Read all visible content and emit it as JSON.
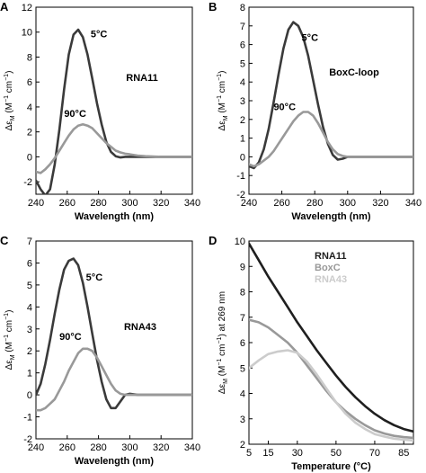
{
  "colors": {
    "dark": "#3a3a3a",
    "mid": "#999999",
    "light": "#cccccc",
    "black": "#1f1f1f"
  },
  "chart_data": [
    {
      "panel_letter": "A",
      "type": "line",
      "annotation": "RNA11",
      "xlabel": "Wavelength (nm)",
      "ylabel_parts": [
        "Δε",
        "M",
        " (M",
        "−1",
        " cm",
        "−1",
        ")"
      ],
      "xlim": [
        240,
        340
      ],
      "ylim": [
        -3,
        12
      ],
      "xticks": [
        240,
        260,
        280,
        300,
        320,
        340
      ],
      "yticks": [
        -2,
        0,
        2,
        4,
        6,
        8,
        10,
        12
      ],
      "series": [
        {
          "name": "5°C",
          "color": "dark",
          "x": [
            240,
            243,
            246,
            249,
            252,
            255,
            258,
            261,
            264,
            267,
            270,
            273,
            276,
            279,
            282,
            285,
            288,
            291,
            294,
            297,
            300,
            305,
            310,
            320,
            330,
            340
          ],
          "y": [
            -1.9,
            -2.6,
            -3.1,
            -2.6,
            -0.6,
            2.2,
            5.4,
            8.2,
            9.8,
            10.2,
            9.6,
            8.2,
            6.3,
            4.3,
            2.6,
            1.2,
            0.4,
            0.05,
            -0.05,
            0.0,
            0.0,
            0.0,
            0.0,
            0.0,
            0.0,
            0.0
          ]
        },
        {
          "name": "90°C",
          "color": "mid",
          "x": [
            240,
            243,
            246,
            249,
            252,
            255,
            258,
            261,
            264,
            267,
            270,
            273,
            276,
            279,
            282,
            285,
            288,
            291,
            294,
            297,
            300,
            305,
            310,
            320,
            330,
            340
          ],
          "y": [
            -1.2,
            -1.3,
            -1.0,
            -0.6,
            -0.1,
            0.5,
            1.1,
            1.7,
            2.2,
            2.5,
            2.6,
            2.5,
            2.3,
            1.9,
            1.5,
            1.1,
            0.8,
            0.5,
            0.35,
            0.25,
            0.2,
            0.1,
            0.05,
            0.0,
            0.0,
            0.0
          ]
        }
      ],
      "labels": [
        {
          "text": "5°C",
          "x": 275,
          "y": 9.6
        },
        {
          "text": "90°C",
          "x": 258,
          "y": 3.2
        }
      ]
    },
    {
      "panel_letter": "B",
      "type": "line",
      "annotation": "BoxC-loop",
      "xlabel": "Wavelength (nm)",
      "ylabel_parts": [
        "Δε",
        "M",
        " (M",
        "−1",
        " cm",
        "−1",
        ")"
      ],
      "xlim": [
        240,
        340
      ],
      "ylim": [
        -2,
        8
      ],
      "xticks": [
        240,
        260,
        280,
        300,
        320,
        340
      ],
      "yticks": [
        -2,
        -1,
        0,
        1,
        2,
        3,
        4,
        5,
        6,
        7,
        8
      ],
      "series": [
        {
          "name": "5°C",
          "color": "dark",
          "x": [
            240,
            243,
            246,
            249,
            252,
            255,
            258,
            261,
            264,
            267,
            270,
            273,
            276,
            279,
            282,
            285,
            288,
            291,
            294,
            297,
            300,
            305,
            310,
            320,
            330,
            340
          ],
          "y": [
            -0.5,
            -0.6,
            -0.3,
            0.4,
            1.5,
            2.9,
            4.4,
            5.8,
            6.8,
            7.2,
            7.0,
            6.4,
            5.4,
            4.1,
            2.8,
            1.6,
            0.7,
            0.1,
            -0.15,
            -0.1,
            0.0,
            0.0,
            0.0,
            0.0,
            0.0,
            0.0
          ]
        },
        {
          "name": "90°C",
          "color": "mid",
          "x": [
            240,
            243,
            246,
            249,
            252,
            255,
            258,
            261,
            264,
            267,
            270,
            273,
            276,
            279,
            282,
            285,
            288,
            291,
            294,
            297,
            300,
            305,
            310,
            320,
            330,
            340
          ],
          "y": [
            -0.4,
            -0.5,
            -0.4,
            -0.2,
            0.0,
            0.3,
            0.7,
            1.1,
            1.5,
            1.9,
            2.2,
            2.4,
            2.4,
            2.2,
            1.8,
            1.3,
            0.8,
            0.4,
            0.15,
            0.05,
            0.0,
            0.0,
            0.0,
            0.0,
            0.0,
            0.0
          ]
        }
      ],
      "labels": [
        {
          "text": "5°C",
          "x": 272,
          "y": 6.2
        },
        {
          "text": "90°C",
          "x": 255,
          "y": 2.5
        }
      ]
    },
    {
      "panel_letter": "C",
      "type": "line",
      "annotation": "RNA43",
      "xlabel": "Wavelength (nm)",
      "ylabel_parts": [
        "Δε",
        "M",
        " (M",
        "−1",
        " cm",
        "−1",
        ")"
      ],
      "xlim": [
        240,
        340
      ],
      "ylim": [
        -2,
        7
      ],
      "xticks": [
        240,
        260,
        280,
        300,
        320,
        340
      ],
      "yticks": [
        -2,
        -1,
        0,
        1,
        2,
        3,
        4,
        5,
        6,
        7
      ],
      "series": [
        {
          "name": "5°C",
          "color": "dark",
          "x": [
            240,
            243,
            246,
            249,
            252,
            255,
            258,
            261,
            264,
            267,
            270,
            273,
            276,
            279,
            282,
            285,
            288,
            291,
            294,
            297,
            300,
            305,
            310,
            320,
            330,
            340
          ],
          "y": [
            0.0,
            0.5,
            1.4,
            2.5,
            3.7,
            4.8,
            5.7,
            6.1,
            6.2,
            5.9,
            5.1,
            4.0,
            2.8,
            1.6,
            0.6,
            -0.2,
            -0.6,
            -0.6,
            -0.3,
            0.0,
            0.05,
            0.0,
            0.0,
            0.0,
            0.0,
            0.0
          ]
        },
        {
          "name": "90°C",
          "color": "mid",
          "x": [
            240,
            243,
            246,
            249,
            252,
            255,
            258,
            261,
            264,
            267,
            270,
            273,
            276,
            279,
            282,
            285,
            288,
            291,
            294,
            297,
            300,
            305,
            310,
            320,
            330,
            340
          ],
          "y": [
            -0.7,
            -0.7,
            -0.6,
            -0.4,
            -0.2,
            0.2,
            0.6,
            1.1,
            1.5,
            1.9,
            2.1,
            2.1,
            2.0,
            1.7,
            1.3,
            0.9,
            0.5,
            0.2,
            0.05,
            0.0,
            0.0,
            0.0,
            0.0,
            0.0,
            0.0,
            0.0
          ]
        }
      ],
      "labels": [
        {
          "text": "5°C",
          "x": 272,
          "y": 5.2
        },
        {
          "text": "90°C",
          "x": 255,
          "y": 2.5
        }
      ]
    },
    {
      "panel_letter": "D",
      "type": "line",
      "annotation": "",
      "xlabel": "Temperature (°C)",
      "ylabel_parts": [
        "Δε",
        "M",
        " (M",
        "−1",
        " cm",
        "−1",
        ") at 269 nm"
      ],
      "xlim": [
        5,
        90
      ],
      "ylim": [
        2,
        10
      ],
      "xticks": [
        5,
        15,
        30,
        50,
        70,
        85
      ],
      "yticks": [
        2,
        3,
        4,
        5,
        6,
        7,
        8,
        9,
        10
      ],
      "legend_placement": "top-center",
      "series": [
        {
          "name": "RNA11",
          "color": "black",
          "x": [
            5,
            10,
            15,
            20,
            25,
            30,
            35,
            40,
            45,
            50,
            55,
            60,
            65,
            70,
            75,
            80,
            85,
            90
          ],
          "y": [
            9.9,
            9.25,
            8.6,
            8.0,
            7.4,
            6.8,
            6.25,
            5.7,
            5.2,
            4.7,
            4.25,
            3.85,
            3.5,
            3.2,
            2.95,
            2.75,
            2.6,
            2.5
          ]
        },
        {
          "name": "BoxC",
          "color": "mid",
          "x": [
            5,
            10,
            15,
            20,
            25,
            30,
            35,
            40,
            45,
            50,
            55,
            60,
            65,
            70,
            75,
            80,
            85,
            90
          ],
          "y": [
            6.9,
            6.8,
            6.6,
            6.3,
            6.0,
            5.6,
            5.1,
            4.6,
            4.1,
            3.65,
            3.3,
            3.0,
            2.75,
            2.55,
            2.42,
            2.33,
            2.28,
            2.25
          ]
        },
        {
          "name": "RNA43",
          "color": "light",
          "x": [
            5,
            10,
            15,
            20,
            25,
            30,
            35,
            40,
            45,
            50,
            55,
            60,
            65,
            70,
            75,
            80,
            85,
            90
          ],
          "y": [
            5.0,
            5.3,
            5.55,
            5.65,
            5.7,
            5.6,
            5.25,
            4.75,
            4.2,
            3.65,
            3.2,
            2.85,
            2.6,
            2.4,
            2.3,
            2.22,
            2.18,
            2.15
          ]
        }
      ],
      "labels": []
    }
  ]
}
